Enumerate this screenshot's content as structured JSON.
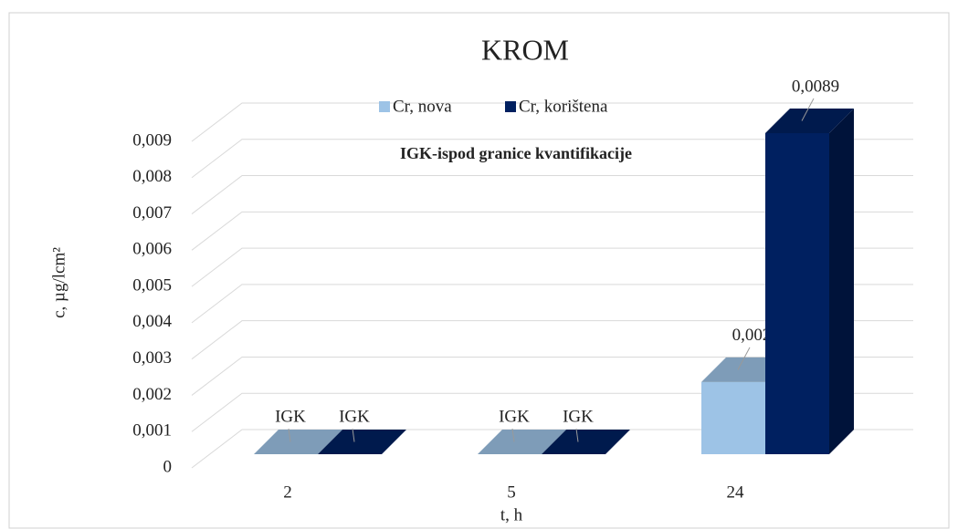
{
  "chart_data": {
    "type": "bar3d",
    "title": "KROM",
    "annotation": "IGK-ispod granice kvantifikacije",
    "x_label": "t, h",
    "y_label": "c, µg/lcm²",
    "categories": [
      "2",
      "5",
      "24"
    ],
    "series": [
      {
        "name": "Cr, nova",
        "color": "#9dc3e6",
        "values": [
          0,
          0,
          0.002
        ],
        "value_labels": [
          "IGK",
          "IGK",
          "0,002"
        ]
      },
      {
        "name": "Cr, korištena",
        "color": "#002060",
        "values": [
          0,
          0,
          0.0089
        ],
        "value_labels": [
          "IGK",
          "IGK",
          "0,0089"
        ]
      }
    ],
    "ylim": [
      0,
      0.009
    ],
    "yticks": [
      0,
      {
        "value": 0.001,
        "label": "0,001"
      },
      {
        "value": 0.002,
        "label": "0,002"
      },
      {
        "value": 0.003,
        "label": "0,003"
      },
      {
        "value": 0.004,
        "label": "0,004"
      },
      {
        "value": 0.005,
        "label": "0,005"
      },
      {
        "value": 0.006,
        "label": "0,006"
      },
      {
        "value": 0.007,
        "label": "0,007"
      },
      {
        "value": 0.008,
        "label": "0,008"
      },
      {
        "value": 0.009,
        "label": "0,009"
      }
    ],
    "grid": true
  }
}
